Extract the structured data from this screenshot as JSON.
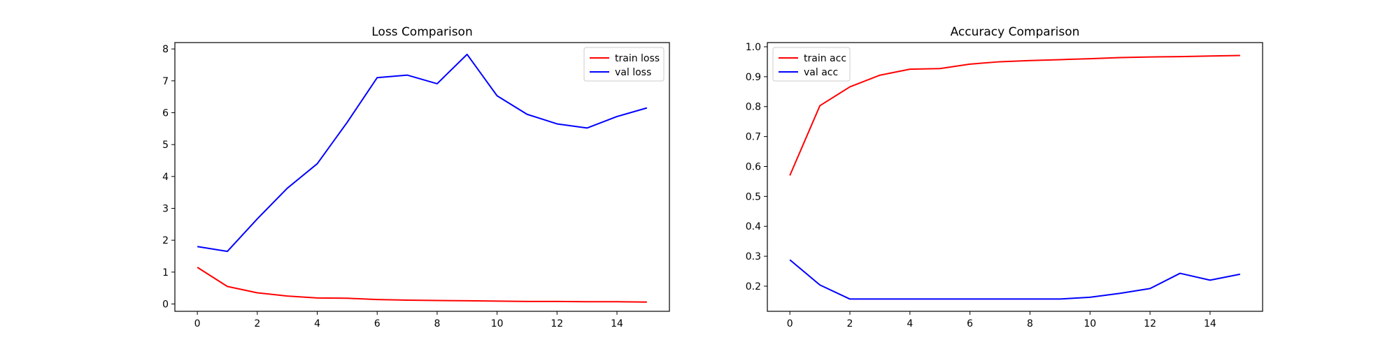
{
  "chart_data": [
    {
      "type": "line",
      "title": "Loss Comparison",
      "xlabel": "",
      "ylabel": "",
      "x": [
        0,
        1,
        2,
        3,
        4,
        5,
        6,
        7,
        8,
        9,
        10,
        11,
        12,
        13,
        14,
        15
      ],
      "xlim": [
        -0.75,
        15.75
      ],
      "ylim": [
        -0.23,
        8.2
      ],
      "xticks": [
        0,
        2,
        4,
        6,
        8,
        10,
        12,
        14
      ],
      "yticks": [
        0,
        1,
        2,
        3,
        4,
        5,
        6,
        7,
        8
      ],
      "legend_position": "upper right",
      "series": [
        {
          "name": "train loss",
          "color": "#ff0000",
          "values": [
            1.15,
            0.55,
            0.35,
            0.25,
            0.19,
            0.18,
            0.14,
            0.12,
            0.11,
            0.1,
            0.09,
            0.08,
            0.08,
            0.07,
            0.07,
            0.06
          ]
        },
        {
          "name": "val loss",
          "color": "#0000ff",
          "values": [
            1.8,
            1.65,
            2.67,
            3.63,
            4.4,
            5.7,
            7.1,
            7.18,
            6.91,
            7.83,
            6.53,
            5.95,
            5.65,
            5.52,
            5.88,
            6.15
          ]
        }
      ]
    },
    {
      "type": "line",
      "title": "Accuracy Comparison",
      "xlabel": "",
      "ylabel": "",
      "x": [
        0,
        1,
        2,
        3,
        4,
        5,
        6,
        7,
        8,
        9,
        10,
        11,
        12,
        13,
        14,
        15
      ],
      "xlim": [
        -0.75,
        15.75
      ],
      "ylim": [
        0.116,
        1.014
      ],
      "xticks": [
        0,
        2,
        4,
        6,
        8,
        10,
        12,
        14
      ],
      "yticks": [
        0.2,
        0.3,
        0.4,
        0.5,
        0.6,
        0.7,
        0.8,
        0.9,
        1.0
      ],
      "legend_position": "upper left",
      "series": [
        {
          "name": "train acc",
          "color": "#ff0000",
          "values": [
            0.57,
            0.803,
            0.866,
            0.905,
            0.925,
            0.927,
            0.942,
            0.95,
            0.954,
            0.957,
            0.96,
            0.964,
            0.966,
            0.967,
            0.969,
            0.971
          ]
        },
        {
          "name": "val acc",
          "color": "#0000ff",
          "values": [
            0.288,
            0.204,
            0.157,
            0.157,
            0.157,
            0.157,
            0.157,
            0.157,
            0.157,
            0.157,
            0.163,
            0.176,
            0.192,
            0.243,
            0.22,
            0.24
          ]
        }
      ]
    }
  ]
}
